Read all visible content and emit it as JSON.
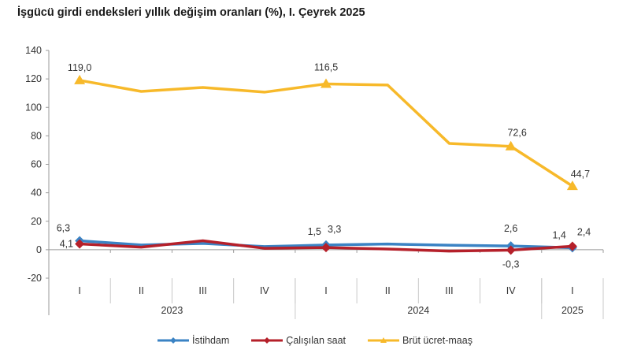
{
  "chart_data": {
    "type": "line",
    "title": "İşgücü girdi endeksleri yıllık değişim oranları (%), I. Çeyrek 2025",
    "xlabel": "",
    "ylabel": "",
    "ylim": [
      -20,
      140
    ],
    "yticks": [
      -20,
      0,
      20,
      40,
      60,
      80,
      100,
      120,
      140
    ],
    "grid": false,
    "legend_position": "bottom",
    "categories": [
      "I",
      "II",
      "III",
      "IV",
      "I",
      "II",
      "III",
      "IV",
      "I"
    ],
    "year_groups": [
      {
        "label": "2023",
        "span": 4
      },
      {
        "label": "2024",
        "span": 4
      },
      {
        "label": "2025",
        "span": 1
      }
    ],
    "series": [
      {
        "name": "İstihdam",
        "color": "#3B83C4",
        "marker": "diamond",
        "values": [
          6.3,
          3.3,
          4.4,
          2.2,
          3.3,
          4.0,
          3.2,
          2.6,
          1.4
        ],
        "labels": [
          "6,3",
          "",
          "",
          "",
          "3,3",
          "",
          "",
          "2,6",
          "1,4"
        ]
      },
      {
        "name": "Çalışılan saat",
        "color": "#B5202A",
        "marker": "diamond",
        "values": [
          4.1,
          1.8,
          6.3,
          1.0,
          1.5,
          0.5,
          -1.0,
          -0.3,
          2.4
        ],
        "labels": [
          "4,1",
          "",
          "",
          "",
          "1,5",
          "",
          "",
          "-0,3",
          "2,4"
        ]
      },
      {
        "name": "Brüt ücret-maaş",
        "color": "#F7B92A",
        "marker": "triangle",
        "values": [
          119.0,
          111.2,
          114.0,
          110.7,
          116.5,
          115.7,
          74.7,
          72.6,
          44.7
        ],
        "labels": [
          "119,0",
          "",
          "",
          "",
          "116,5",
          "",
          "",
          "72,6",
          "44,7"
        ]
      }
    ]
  },
  "legend": {
    "items": [
      {
        "label": "İstihdam",
        "color": "#3B83C4"
      },
      {
        "label": "Çalışılan saat",
        "color": "#B5202A"
      },
      {
        "label": "Brüt ücret-maaş",
        "color": "#F7B92A"
      }
    ]
  }
}
